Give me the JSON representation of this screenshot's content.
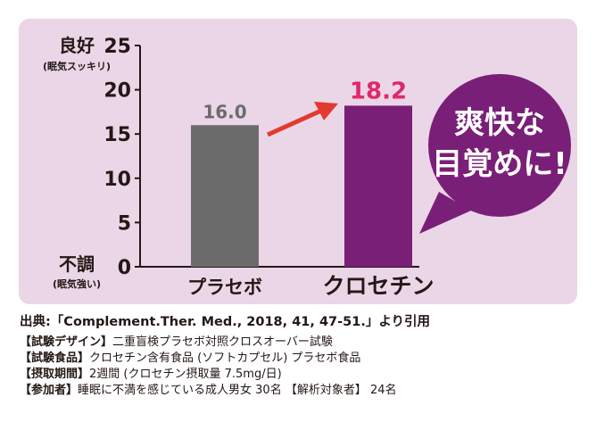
{
  "colors": {
    "panel_bg": "#ead6e7",
    "placebo_bar": "#6b6b6b",
    "crocetin_bar": "#7a1f78",
    "crocetin_value": "#e0286a",
    "arrow": "#e23a2e",
    "badge": "#7a1f78"
  },
  "chart_data": {
    "type": "bar",
    "categories": [
      "プラセボ",
      "クロセチン"
    ],
    "values": [
      16.0,
      18.2
    ],
    "value_labels": [
      "16.0",
      "18.2"
    ],
    "ylim": [
      0,
      25
    ],
    "yticks": [
      0,
      5,
      10,
      15,
      20,
      25
    ],
    "y_top_label": "良好",
    "y_top_sublabel": "(眠気スッキリ)",
    "y_bottom_label": "不調",
    "y_bottom_sublabel": "(眠気強い)",
    "grid": false
  },
  "badge": {
    "line1": "爽快な",
    "line2": "目覚めに!"
  },
  "notes": {
    "source": "出典:「Complement.Ther. Med., 2018, 41, 47-51.」より引用",
    "lines": [
      {
        "tag": "【試験デザイン】",
        "text": "二重盲検プラセボ対照クロスオーバー試験"
      },
      {
        "tag": "【試験食品】",
        "text": "クロセチン含有食品 (ソフトカプセル) プラセボ食品"
      },
      {
        "tag": "【摂取期間】",
        "text": "2週間 (クロセチン摂取量 7.5mg/日)"
      },
      {
        "tag": "【参加者】",
        "text": "睡眠に不満を感じている成人男女 30名 【解析対象者】 24名"
      }
    ]
  }
}
